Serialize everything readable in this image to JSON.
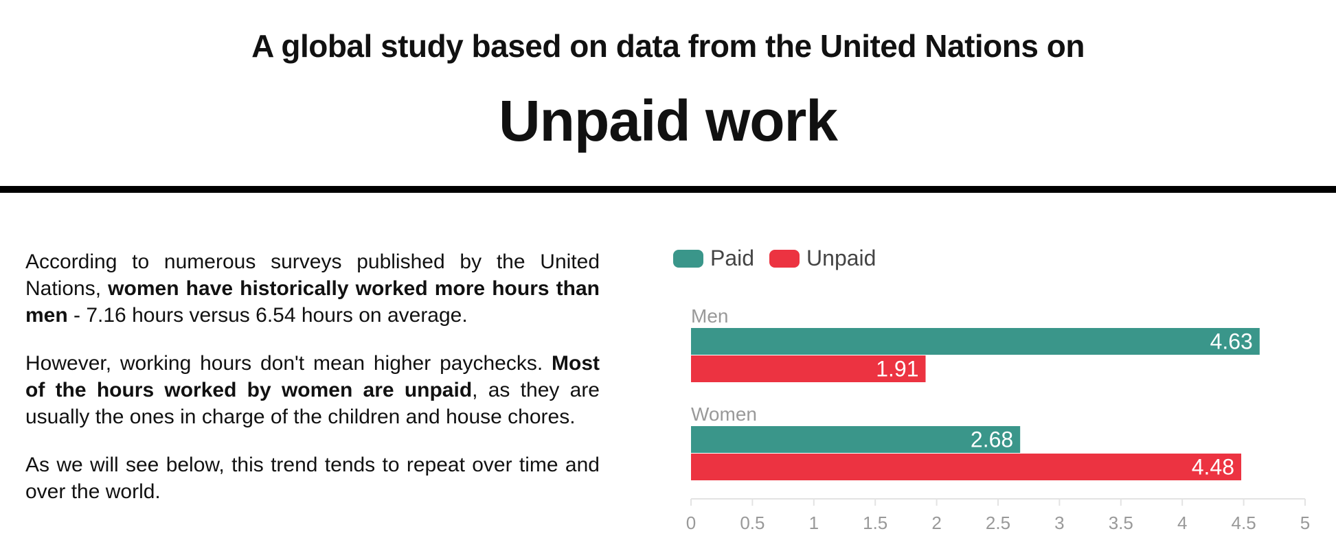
{
  "header": {
    "supertitle": "A global study based on data from the United Nations on",
    "title": "Unpaid work"
  },
  "article": {
    "p1_a": "According to numerous surveys published by the United Nations, ",
    "p1_b": "women have historically worked more hours than men",
    "p1_c": " - 7.16 hours versus 6.54 hours on average.",
    "p2_a": "However, working hours don't mean higher paychecks. ",
    "p2_b": "Most of the hours worked by women are unpaid",
    "p2_c": ", as they are usually the ones in charge of the children and house chores.",
    "p3": "As we will see below, this trend tends to repeat over time and over the world."
  },
  "colors": {
    "paid": "#3a968a",
    "unpaid": "#ec3341",
    "group_label": "#999999",
    "tick_label": "#999999",
    "axis_line": "#e3e3e3"
  },
  "chart_data": {
    "type": "bar",
    "orientation": "horizontal",
    "categories": [
      "Men",
      "Women"
    ],
    "series": [
      {
        "name": "Paid",
        "values": [
          4.63,
          2.68
        ],
        "color": "#3a968a"
      },
      {
        "name": "Unpaid",
        "values": [
          1.91,
          4.48
        ],
        "color": "#ec3341"
      }
    ],
    "xlim": [
      0,
      5
    ],
    "xticks": [
      "0",
      "0.5",
      "1",
      "1.5",
      "2",
      "2.5",
      "3",
      "3.5",
      "4",
      "4.5",
      "5"
    ],
    "data_labels": [
      [
        "4.63",
        "2.68"
      ],
      [
        "1.91",
        "4.48"
      ]
    ],
    "legend_position": "top-left",
    "grid": false
  }
}
